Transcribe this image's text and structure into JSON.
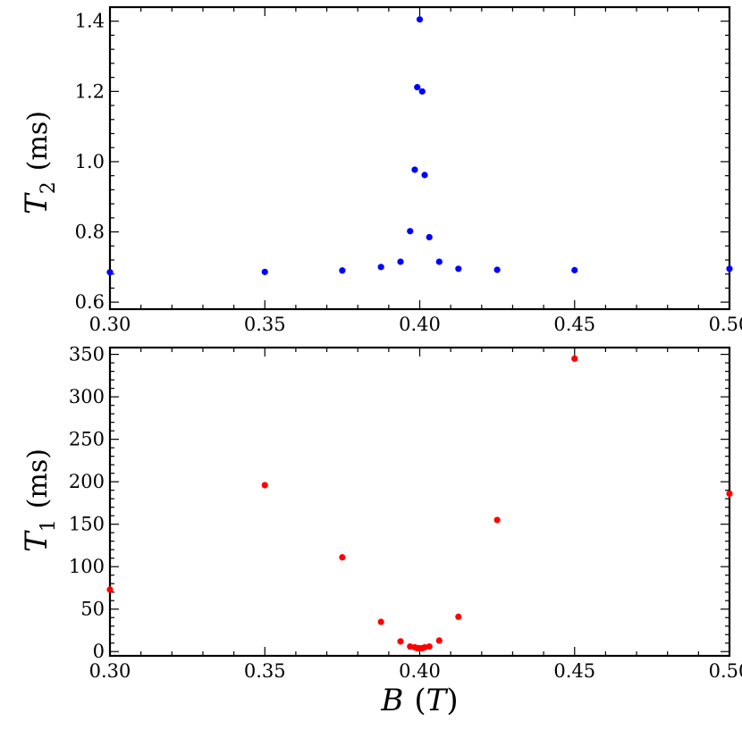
{
  "chart_data": [
    {
      "type": "scatter",
      "panel": "top",
      "ylabel": {
        "symbol": "T",
        "subscript": "2",
        "unit": "(ms)"
      },
      "xlim": [
        0.3,
        0.5
      ],
      "ylim": [
        0.58,
        1.44
      ],
      "xticks": [
        0.3,
        0.35,
        0.4,
        0.45,
        0.5
      ],
      "xtick_labels": [
        "0.30",
        "0.35",
        "0.40",
        "0.45",
        "0.50"
      ],
      "yticks": [
        0.6,
        0.8,
        1.0,
        1.2,
        1.4
      ],
      "ytick_labels": [
        "0.6",
        "0.8",
        "1.0",
        "1.2",
        "1.4"
      ],
      "color": "#0000ff",
      "points": [
        {
          "x": 0.3,
          "y": 0.685
        },
        {
          "x": 0.35,
          "y": 0.686
        },
        {
          "x": 0.375,
          "y": 0.69
        },
        {
          "x": 0.3875,
          "y": 0.7
        },
        {
          "x": 0.3938,
          "y": 0.715
        },
        {
          "x": 0.3969,
          "y": 0.802
        },
        {
          "x": 0.3984,
          "y": 0.977
        },
        {
          "x": 0.3992,
          "y": 1.212
        },
        {
          "x": 0.4,
          "y": 1.405
        },
        {
          "x": 0.4008,
          "y": 1.2
        },
        {
          "x": 0.4016,
          "y": 0.962
        },
        {
          "x": 0.4031,
          "y": 0.785
        },
        {
          "x": 0.4063,
          "y": 0.715
        },
        {
          "x": 0.4125,
          "y": 0.695
        },
        {
          "x": 0.425,
          "y": 0.692
        },
        {
          "x": 0.45,
          "y": 0.691
        },
        {
          "x": 0.5,
          "y": 0.695
        }
      ]
    },
    {
      "type": "scatter",
      "panel": "bottom",
      "ylabel": {
        "symbol": "T",
        "subscript": "1",
        "unit": "(ms)"
      },
      "xlabel": {
        "symbol": "B",
        "unit": "T"
      },
      "xlim": [
        0.3,
        0.5
      ],
      "ylim": [
        -5,
        358
      ],
      "xticks": [
        0.3,
        0.35,
        0.4,
        0.45,
        0.5
      ],
      "xtick_labels": [
        "0.30",
        "0.35",
        "0.40",
        "0.45",
        "0.50"
      ],
      "yticks": [
        0,
        50,
        100,
        150,
        200,
        250,
        300,
        350
      ],
      "ytick_labels": [
        "0",
        "50",
        "100",
        "150",
        "200",
        "250",
        "300",
        "350"
      ],
      "color": "#ff0000",
      "points": [
        {
          "x": 0.3,
          "y": 73
        },
        {
          "x": 0.35,
          "y": 196
        },
        {
          "x": 0.375,
          "y": 111
        },
        {
          "x": 0.3875,
          "y": 35
        },
        {
          "x": 0.3938,
          "y": 12
        },
        {
          "x": 0.3969,
          "y": 6
        },
        {
          "x": 0.3984,
          "y": 5
        },
        {
          "x": 0.3992,
          "y": 4
        },
        {
          "x": 0.4,
          "y": 4
        },
        {
          "x": 0.4008,
          "y": 4
        },
        {
          "x": 0.4016,
          "y": 5
        },
        {
          "x": 0.4031,
          "y": 6
        },
        {
          "x": 0.4063,
          "y": 13
        },
        {
          "x": 0.4125,
          "y": 41
        },
        {
          "x": 0.425,
          "y": 155
        },
        {
          "x": 0.45,
          "y": 345
        },
        {
          "x": 0.5,
          "y": 186
        }
      ]
    }
  ]
}
